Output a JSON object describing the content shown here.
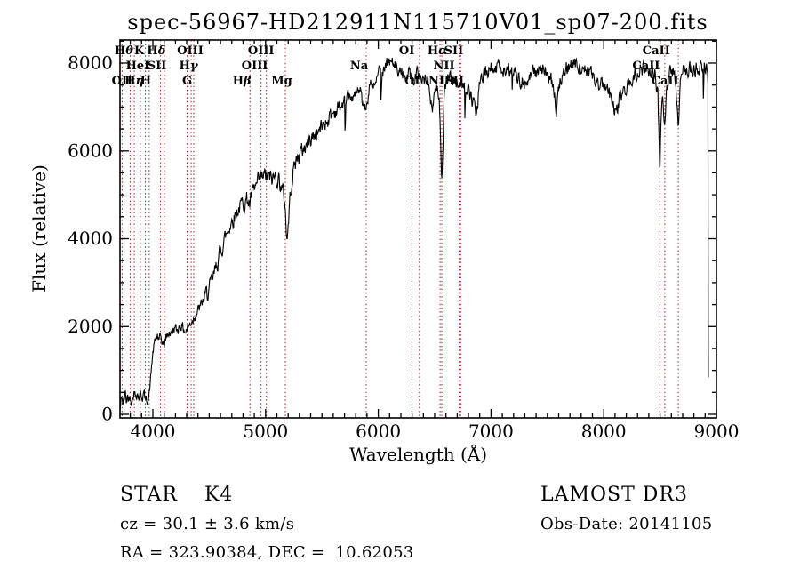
{
  "footer": {
    "object_type": "STAR",
    "subclass": "K4",
    "survey": "LAMOST DR3",
    "cz_text": "cz = 30.1 ± 3.6 km/s",
    "obs_date_text": "Obs-Date: 20141105",
    "radec_text": "RA = 323.90384, DEC =  10.62053"
  },
  "chart_data": {
    "type": "line",
    "title": "spec-56967-HD212911N115710V01_sp07-200.fits",
    "xlabel": "Wavelength (Å)",
    "ylabel": "Flux (relative)",
    "xlim": [
      3708,
      9000
    ],
    "ylim": [
      0,
      8550
    ],
    "x_ticks": [
      4000,
      5000,
      6000,
      7000,
      8000,
      9000
    ],
    "y_ticks": [
      0,
      2000,
      4000,
      6000,
      8000
    ],
    "x_minor_step": 100,
    "y_minor_step": 500,
    "grid": false,
    "colors": {
      "trace": "#000000",
      "line_markers": "#9b2323",
      "text": "#000000"
    },
    "spectral_lines": [
      {
        "label": "OII",
        "wavelength": 3727,
        "row": 3,
        "dx": 0
      },
      {
        "label": "Hθ",
        "wavelength": 3798,
        "row": 1,
        "dx": -7
      },
      {
        "label": "Hη",
        "wavelength": 3835,
        "row": 3,
        "dx": 0
      },
      {
        "label": "HeI",
        "wavelength": 3889,
        "row": 2,
        "dx": -3
      },
      {
        "label": "K",
        "wavelength": 3934,
        "row": 1,
        "dx": -7
      },
      {
        "label": "H",
        "wavelength": 3968,
        "row": 3,
        "dx": -4
      },
      {
        "label": "SII",
        "wavelength": 4068,
        "row": 2,
        "dx": -4
      },
      {
        "label": "Hδ",
        "wavelength": 4102,
        "row": 1,
        "dx": -9
      },
      {
        "label": "G",
        "wavelength": 4304,
        "row": 3,
        "dx": 0
      },
      {
        "label": "Hγ",
        "wavelength": 4340,
        "row": 2,
        "dx": -3
      },
      {
        "label": "OIII",
        "wavelength": 4363,
        "row": 1,
        "dx": -4
      },
      {
        "label": "Hβ",
        "wavelength": 4861,
        "row": 3,
        "dx": -9
      },
      {
        "label": "OIII",
        "wavelength": 4959,
        "row": 2,
        "dx": -7
      },
      {
        "label": "OIII",
        "wavelength": 5007,
        "row": 1,
        "dx": -6
      },
      {
        "label": "Mg",
        "wavelength": 5175,
        "row": 3,
        "dx": -4
      },
      {
        "label": "Na",
        "wavelength": 5893,
        "row": 2,
        "dx": -8
      },
      {
        "label": "OI",
        "wavelength": 6300,
        "row": 1,
        "dx": -6
      },
      {
        "label": "OI",
        "wavelength": 6364,
        "row": 3,
        "dx": -8
      },
      {
        "label": "NII",
        "wavelength": 6548,
        "row": 3,
        "dx": -1
      },
      {
        "label": "Hα",
        "wavelength": 6563,
        "row": 1,
        "dx": -5
      },
      {
        "label": "NII",
        "wavelength": 6583,
        "row": 2,
        "dx": 0
      },
      {
        "label": "SII",
        "wavelength": 6716,
        "row": 1,
        "dx": -6
      },
      {
        "label": "SII",
        "wavelength": 6731,
        "row": 3,
        "dx": -7
      },
      {
        "label": "CaII",
        "wavelength": 8498,
        "row": 1,
        "dx": -4
      },
      {
        "label": "CaII",
        "wavelength": 8542,
        "row": 2,
        "dx": -21
      },
      {
        "label": "CaII",
        "wavelength": 8662,
        "row": 3,
        "dx": -15
      }
    ],
    "spectrum": {
      "end_wavelength": 8930,
      "wavelength_flux_anchors": [
        [
          3708,
          60
        ],
        [
          3715,
          250
        ],
        [
          3725,
          420
        ],
        [
          3735,
          230
        ],
        [
          3745,
          350
        ],
        [
          3755,
          480
        ],
        [
          3765,
          300
        ],
        [
          3775,
          420
        ],
        [
          3785,
          350
        ],
        [
          3800,
          430
        ],
        [
          3815,
          300
        ],
        [
          3830,
          520
        ],
        [
          3845,
          430
        ],
        [
          3860,
          510
        ],
        [
          3875,
          380
        ],
        [
          3890,
          480
        ],
        [
          3905,
          400
        ],
        [
          3920,
          480
        ],
        [
          3935,
          300
        ],
        [
          3950,
          350
        ],
        [
          3965,
          400
        ],
        [
          3980,
          800
        ],
        [
          3995,
          1300
        ],
        [
          4010,
          1550
        ],
        [
          4025,
          1700
        ],
        [
          4040,
          1800
        ],
        [
          4055,
          1650
        ],
        [
          4070,
          1750
        ],
        [
          4085,
          1650
        ],
        [
          4100,
          1550
        ],
        [
          4115,
          1750
        ],
        [
          4130,
          1800
        ],
        [
          4145,
          1900
        ],
        [
          4160,
          1820
        ],
        [
          4175,
          1900
        ],
        [
          4190,
          1980
        ],
        [
          4210,
          1900
        ],
        [
          4230,
          1980
        ],
        [
          4250,
          2050
        ],
        [
          4270,
          1950
        ],
        [
          4290,
          1880
        ],
        [
          4310,
          1980
        ],
        [
          4330,
          2050
        ],
        [
          4350,
          2150
        ],
        [
          4370,
          2250
        ],
        [
          4390,
          2320
        ],
        [
          4420,
          2450
        ],
        [
          4450,
          2600
        ],
        [
          4480,
          2750
        ],
        [
          4510,
          2900
        ],
        [
          4540,
          3150
        ],
        [
          4570,
          3450
        ],
        [
          4600,
          3700
        ],
        [
          4630,
          3950
        ],
        [
          4660,
          4150
        ],
        [
          4690,
          4350
        ],
        [
          4720,
          4500
        ],
        [
          4750,
          4650
        ],
        [
          4780,
          4750
        ],
        [
          4810,
          4850
        ],
        [
          4840,
          4900
        ],
        [
          4861,
          4780
        ],
        [
          4880,
          5000
        ],
        [
          4910,
          5150
        ],
        [
          4940,
          5300
        ],
        [
          4970,
          5400
        ],
        [
          5000,
          5420
        ],
        [
          5030,
          5380
        ],
        [
          5060,
          5350
        ],
        [
          5090,
          5420
        ],
        [
          5120,
          5350
        ],
        [
          5150,
          5100
        ],
        [
          5175,
          4750
        ],
        [
          5190,
          3900
        ],
        [
          5205,
          4500
        ],
        [
          5225,
          5200
        ],
        [
          5250,
          5600
        ],
        [
          5280,
          5850
        ],
        [
          5310,
          5950
        ],
        [
          5350,
          6100
        ],
        [
          5390,
          6250
        ],
        [
          5430,
          6350
        ],
        [
          5470,
          6450
        ],
        [
          5510,
          6600
        ],
        [
          5560,
          6750
        ],
        [
          5610,
          6900
        ],
        [
          5660,
          7000
        ],
        [
          5710,
          7100
        ],
        [
          5760,
          7200
        ],
        [
          5810,
          7300
        ],
        [
          5860,
          7250
        ],
        [
          5893,
          6900
        ],
        [
          5920,
          7400
        ],
        [
          5960,
          7600
        ],
        [
          6000,
          7750
        ],
        [
          6040,
          7850
        ],
        [
          6080,
          7950
        ],
        [
          6120,
          8000
        ],
        [
          6160,
          7950
        ],
        [
          6200,
          7850
        ],
        [
          6240,
          7800
        ],
        [
          6280,
          7700
        ],
        [
          6320,
          7650
        ],
        [
          6360,
          7750
        ],
        [
          6400,
          7700
        ],
        [
          6440,
          7550
        ],
        [
          6480,
          7000
        ],
        [
          6510,
          7450
        ],
        [
          6540,
          7200
        ],
        [
          6563,
          5300
        ],
        [
          6585,
          7250
        ],
        [
          6610,
          7600
        ],
        [
          6650,
          7650
        ],
        [
          6690,
          7550
        ],
        [
          6730,
          7500
        ],
        [
          6770,
          7450
        ],
        [
          6810,
          7300
        ],
        [
          6845,
          7050
        ],
        [
          6870,
          6700
        ],
        [
          6895,
          7500
        ],
        [
          6930,
          7700
        ],
        [
          6970,
          7850
        ],
        [
          7010,
          7900
        ],
        [
          7050,
          7950
        ],
        [
          7090,
          7900
        ],
        [
          7130,
          7850
        ],
        [
          7170,
          7800
        ],
        [
          7210,
          7750
        ],
        [
          7250,
          7650
        ],
        [
          7290,
          7600
        ],
        [
          7330,
          7650
        ],
        [
          7370,
          7750
        ],
        [
          7410,
          7800
        ],
        [
          7450,
          7850
        ],
        [
          7490,
          7800
        ],
        [
          7530,
          7650
        ],
        [
          7560,
          7300
        ],
        [
          7580,
          6900
        ],
        [
          7605,
          7500
        ],
        [
          7640,
          7800
        ],
        [
          7690,
          7950
        ],
        [
          7740,
          8000
        ],
        [
          7790,
          7950
        ],
        [
          7840,
          7850
        ],
        [
          7890,
          7750
        ],
        [
          7940,
          7600
        ],
        [
          7990,
          7450
        ],
        [
          8040,
          7350
        ],
        [
          8080,
          7100
        ],
        [
          8110,
          6760
        ],
        [
          8140,
          7200
        ],
        [
          8180,
          7400
        ],
        [
          8220,
          7550
        ],
        [
          8260,
          7700
        ],
        [
          8300,
          7780
        ],
        [
          8340,
          7850
        ],
        [
          8380,
          7880
        ],
        [
          8420,
          7850
        ],
        [
          8460,
          7750
        ],
        [
          8480,
          7300
        ],
        [
          8498,
          5450
        ],
        [
          8515,
          7300
        ],
        [
          8530,
          7000
        ],
        [
          8542,
          6600
        ],
        [
          8560,
          7500
        ],
        [
          8585,
          7800
        ],
        [
          8610,
          7850
        ],
        [
          8635,
          7500
        ],
        [
          8662,
          6480
        ],
        [
          8685,
          7700
        ],
        [
          8710,
          7850
        ],
        [
          8740,
          7900
        ],
        [
          8770,
          7880
        ],
        [
          8800,
          7900
        ],
        [
          8830,
          7880
        ],
        [
          8860,
          7900
        ],
        [
          8890,
          7850
        ],
        [
          8915,
          7800
        ],
        [
          8925,
          7500
        ],
        [
          8928,
          900
        ],
        [
          8930,
          150
        ]
      ],
      "noise": {
        "seed": 42,
        "step": 4,
        "amp_blue": 110,
        "amp_mid": 175,
        "amp_red": 155,
        "spike_prob": 0.015,
        "spike_min": 250,
        "spike_max": 750
      }
    }
  }
}
